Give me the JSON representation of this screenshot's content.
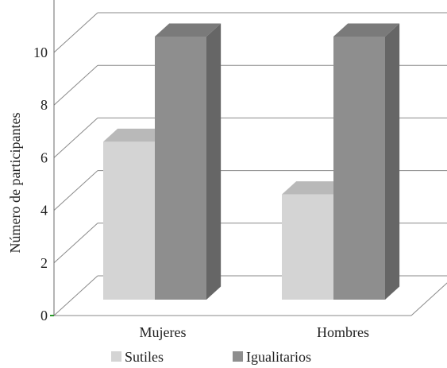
{
  "chart_data": {
    "type": "bar",
    "title": "",
    "xlabel": "",
    "ylabel": "Número de participantes",
    "ylim": [
      0,
      12
    ],
    "yticks": [
      0,
      2,
      4,
      6,
      8,
      10
    ],
    "categories": [
      "Mujeres",
      "Hombres"
    ],
    "series": [
      {
        "name": "Sutiles",
        "values": [
          6,
          4
        ],
        "color": "#d4d4d4",
        "top_color": "#b9b9b9",
        "side_color": "#a8a8a8"
      },
      {
        "name": "Igualitarios",
        "values": [
          10,
          10
        ],
        "color": "#8e8e8e",
        "top_color": "#7a7a7a",
        "side_color": "#666666"
      }
    ],
    "legend": "bottom",
    "grid": true,
    "style": "3d"
  }
}
